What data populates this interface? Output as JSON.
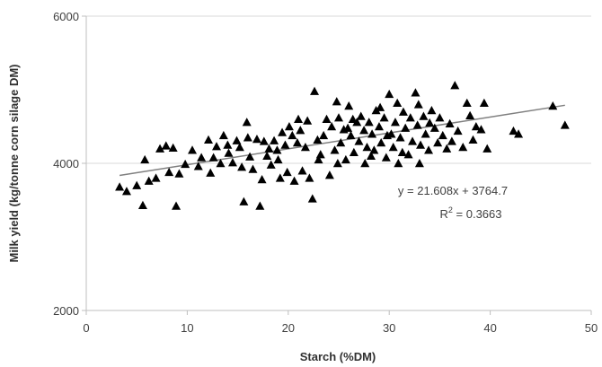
{
  "chart_data": {
    "type": "scatter",
    "xlabel": "Starch (%DM)",
    "ylabel": "Milk yield (kg/tonne corn silage DM)",
    "xlim": [
      0,
      50
    ],
    "ylim": [
      2000,
      6000
    ],
    "x_ticks": [
      "0",
      "10",
      "20",
      "30",
      "40",
      "50"
    ],
    "y_ticks": [
      "2000",
      "4000",
      "6000"
    ],
    "grid": "horizontal major gridlines",
    "marker": "filled black triangle",
    "series": [
      {
        "points": [
          [
            3.3,
            3680
          ],
          [
            4.0,
            3620
          ],
          [
            5.0,
            3700
          ],
          [
            5.6,
            3430
          ],
          [
            5.8,
            4050
          ],
          [
            6.2,
            3760
          ],
          [
            6.9,
            3800
          ],
          [
            7.3,
            4200
          ],
          [
            7.9,
            4240
          ],
          [
            8.2,
            3880
          ],
          [
            8.6,
            4210
          ],
          [
            8.9,
            3420
          ],
          [
            9.2,
            3860
          ],
          [
            9.8,
            3990
          ],
          [
            10.5,
            4180
          ],
          [
            11.1,
            3960
          ],
          [
            11.4,
            4080
          ],
          [
            12.1,
            4320
          ],
          [
            12.3,
            3870
          ],
          [
            12.6,
            4080
          ],
          [
            12.9,
            4230
          ],
          [
            13.3,
            4000
          ],
          [
            13.6,
            4380
          ],
          [
            14.1,
            4140
          ],
          [
            14.5,
            4010
          ],
          [
            14.9,
            4310
          ],
          [
            15.2,
            4220
          ],
          [
            15.4,
            3950
          ],
          [
            15.6,
            3480
          ],
          [
            15.9,
            4560
          ],
          [
            16.2,
            4090
          ],
          [
            16.5,
            3920
          ],
          [
            16.9,
            4330
          ],
          [
            17.2,
            3420
          ],
          [
            17.4,
            3780
          ],
          [
            17.6,
            4300
          ],
          [
            17.9,
            4100
          ],
          [
            18.1,
            4200
          ],
          [
            18.3,
            3980
          ],
          [
            18.6,
            4310
          ],
          [
            18.9,
            4180
          ],
          [
            19.2,
            3800
          ],
          [
            19.4,
            4420
          ],
          [
            19.7,
            4250
          ],
          [
            19.9,
            3880
          ],
          [
            20.1,
            4500
          ],
          [
            20.4,
            4380
          ],
          [
            20.6,
            3760
          ],
          [
            20.9,
            4280
          ],
          [
            21.2,
            4450
          ],
          [
            21.4,
            3900
          ],
          [
            21.7,
            4220
          ],
          [
            21.9,
            4580
          ],
          [
            22.1,
            3800
          ],
          [
            22.4,
            3520
          ],
          [
            22.6,
            4980
          ],
          [
            22.9,
            4320
          ],
          [
            23.2,
            4120
          ],
          [
            23.5,
            4380
          ],
          [
            23.8,
            4600
          ],
          [
            24.1,
            3840
          ],
          [
            24.3,
            4500
          ],
          [
            24.6,
            4180
          ],
          [
            24.8,
            4840
          ],
          [
            25.0,
            4620
          ],
          [
            25.2,
            4280
          ],
          [
            25.5,
            4460
          ],
          [
            25.7,
            4050
          ],
          [
            26.0,
            4780
          ],
          [
            26.2,
            4380
          ],
          [
            26.5,
            4150
          ],
          [
            26.8,
            4560
          ],
          [
            27.0,
            4300
          ],
          [
            27.2,
            4640
          ],
          [
            27.5,
            4450
          ],
          [
            27.8,
            4220
          ],
          [
            28.0,
            4560
          ],
          [
            28.3,
            4400
          ],
          [
            28.5,
            4180
          ],
          [
            28.7,
            4720
          ],
          [
            29.0,
            4500
          ],
          [
            29.2,
            4280
          ],
          [
            29.5,
            4620
          ],
          [
            29.7,
            4080
          ],
          [
            30.0,
            4940
          ],
          [
            30.2,
            4400
          ],
          [
            30.4,
            4220
          ],
          [
            30.6,
            4560
          ],
          [
            30.9,
            4000
          ],
          [
            31.1,
            4350
          ],
          [
            31.4,
            4700
          ],
          [
            31.6,
            4480
          ],
          [
            31.9,
            4120
          ],
          [
            32.1,
            4620
          ],
          [
            32.3,
            4300
          ],
          [
            32.6,
            4960
          ],
          [
            32.8,
            4520
          ],
          [
            33.1,
            4250
          ],
          [
            33.4,
            4640
          ],
          [
            33.6,
            4400
          ],
          [
            33.9,
            4180
          ],
          [
            34.2,
            4720
          ],
          [
            34.5,
            4480
          ],
          [
            34.8,
            4280
          ],
          [
            35.0,
            4620
          ],
          [
            35.3,
            4380
          ],
          [
            35.7,
            4200
          ],
          [
            36.0,
            4540
          ],
          [
            36.5,
            5060
          ],
          [
            36.8,
            4440
          ],
          [
            37.3,
            4220
          ],
          [
            37.7,
            4820
          ],
          [
            38.0,
            4650
          ],
          [
            38.3,
            4320
          ],
          [
            38.6,
            4500
          ],
          [
            39.1,
            4460
          ],
          [
            39.4,
            4820
          ],
          [
            39.7,
            4200
          ],
          [
            42.3,
            4440
          ],
          [
            42.8,
            4400
          ],
          [
            46.2,
            4780
          ],
          [
            47.4,
            4520
          ],
          [
            14.0,
            4250
          ],
          [
            16.0,
            4350
          ],
          [
            19.0,
            4050
          ],
          [
            21.0,
            4600
          ],
          [
            23.0,
            4050
          ],
          [
            25.9,
            4480
          ],
          [
            27.6,
            4000
          ],
          [
            29.1,
            4760
          ],
          [
            31.3,
            4150
          ],
          [
            34.0,
            4550
          ],
          [
            36.2,
            4300
          ],
          [
            24.9,
            4000
          ],
          [
            28.2,
            4100
          ],
          [
            30.8,
            4820
          ],
          [
            33.0,
            4000
          ],
          [
            26.4,
            4600
          ],
          [
            29.8,
            4380
          ],
          [
            32.9,
            4800
          ]
        ]
      }
    ],
    "trendline": {
      "type": "linear",
      "slope": 21.608,
      "intercept": 3764.7,
      "x_range": [
        3.3,
        47.4
      ]
    },
    "annotations": {
      "equation": "y = 21.608x + 3764.7",
      "r2_prefix": "R",
      "r2_superscript": "2",
      "r2_value": " = 0.3663"
    }
  }
}
